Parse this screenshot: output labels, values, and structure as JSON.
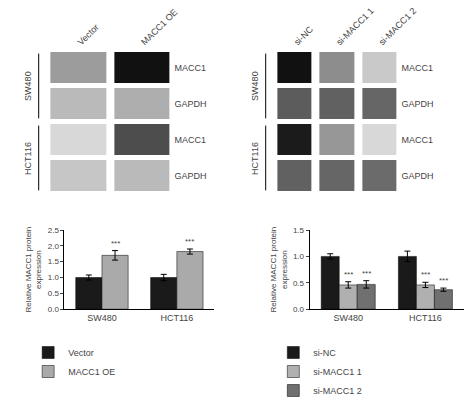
{
  "chart_data": [
    {
      "type": "heatmap",
      "x": [
        "Vector",
        "MACC1 OE"
      ],
      "y": [
        "MACC1",
        "GAPDH",
        "MACC1",
        "GAPDH"
      ],
      "y_groups": [
        "SW480",
        "SW480",
        "HCT116",
        "HCT116"
      ],
      "cells": [
        [
          0.65,
          0.88
        ],
        [
          0.6,
          0.62
        ],
        [
          0.55,
          0.78
        ],
        [
          0.58,
          0.6
        ]
      ]
    },
    {
      "type": "heatmap",
      "x": [
        "si-NC",
        "si-MACC1 1",
        "si-MACC1 2"
      ],
      "y": [
        "MACC1",
        "GAPDH",
        "MACC1",
        "GAPDH"
      ],
      "y_groups": [
        "SW480",
        "SW480",
        "HCT116",
        "HCT116"
      ],
      "cells": [
        [
          0.92,
          0.42,
          0.18
        ],
        [
          0.62,
          0.6,
          0.58
        ],
        [
          0.88,
          0.38,
          0.12
        ],
        [
          0.6,
          0.58,
          0.56
        ]
      ]
    },
    {
      "type": "bar",
      "categories": [
        "SW480",
        "HCT116"
      ],
      "series": [
        {
          "name": "Vector",
          "color": "#1a1a1a",
          "values": [
            1.0,
            1.0
          ],
          "errors": [
            0.08,
            0.1
          ]
        },
        {
          "name": "MACC1 OE",
          "color": "#aaaaaa",
          "values": [
            1.7,
            1.82
          ],
          "errors": [
            0.15,
            0.08
          ]
        }
      ],
      "ylabel": "Relative MACC1 protein\nexpression",
      "ylim": [
        0,
        2.5
      ],
      "yticks": [
        {
          "value": 0,
          "label": "0.0"
        },
        0.5,
        {
          "value": 1,
          "label": "1.0"
        },
        1.5,
        {
          "value": 2,
          "label": "2.0"
        },
        2.5
      ],
      "grid": false,
      "legend": "bottom",
      "annotations": [
        {
          "category": "SW480",
          "series": "MACC1 OE",
          "text": "***"
        },
        {
          "category": "HCT116",
          "series": "MACC1 OE",
          "text": "***"
        }
      ]
    },
    {
      "type": "bar",
      "categories": [
        "SW480",
        "HCT116"
      ],
      "series": [
        {
          "name": "si-NC",
          "color": "#1a1a1a",
          "values": [
            1.0,
            1.0
          ],
          "errors": [
            0.05,
            0.1
          ]
        },
        {
          "name": "si-MACC1 1",
          "color": "#b0b0b0",
          "values": [
            0.46,
            0.46
          ],
          "errors": [
            0.06,
            0.05
          ]
        },
        {
          "name": "si-MACC1 2",
          "color": "#707070",
          "values": [
            0.47,
            0.37
          ],
          "errors": [
            0.07,
            0.03
          ]
        }
      ],
      "ylabel": "Relative MACC1 protein\nexpression",
      "ylim": [
        0,
        1.5
      ],
      "yticks": [
        {
          "value": 0,
          "label": "0.0"
        },
        0.5,
        {
          "value": 1,
          "label": "1.0"
        },
        1.5
      ],
      "grid": false,
      "legend": "bottom",
      "annotations": [
        {
          "category": "SW480",
          "series": "si-MACC1 1",
          "text": "***"
        },
        {
          "category": "HCT116",
          "series": "si-MACC1 1",
          "text": "***"
        },
        {
          "category": "SW480",
          "series": "si-MACC1 2",
          "text": "***"
        },
        {
          "category": "HCT116",
          "series": "si-MACC1 2",
          "text": "***"
        }
      ]
    }
  ]
}
